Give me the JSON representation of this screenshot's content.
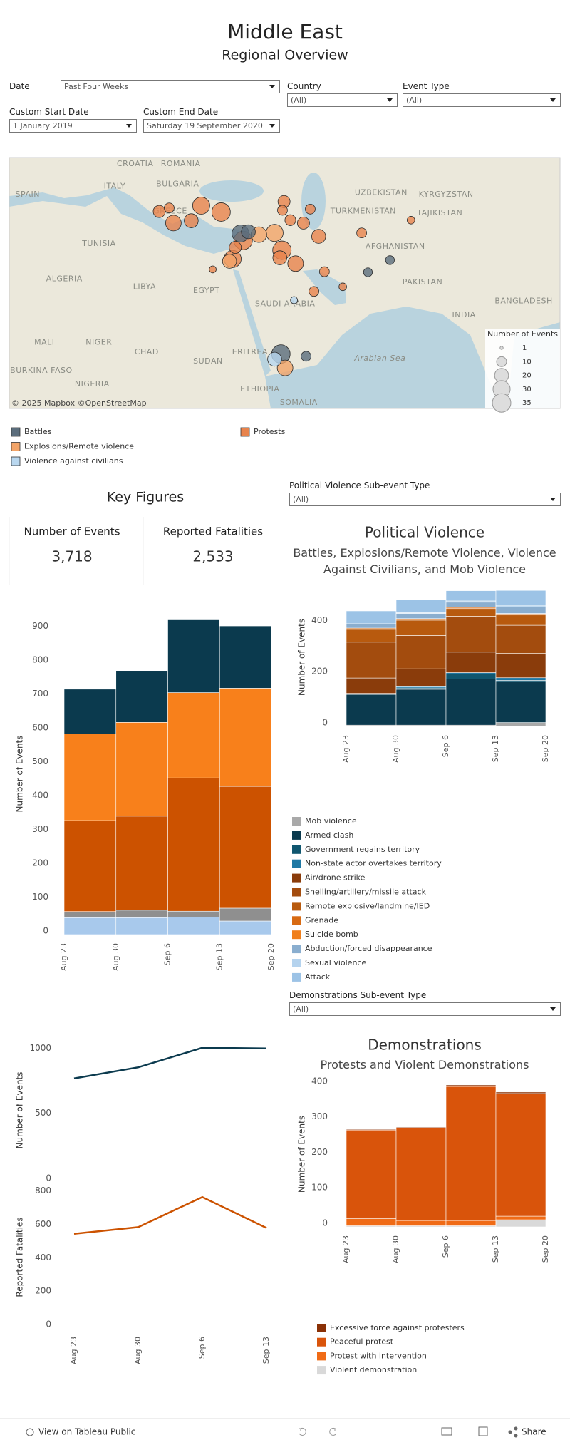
{
  "header": {
    "title": "Middle East",
    "subtitle": "Regional Overview"
  },
  "filters": [
    {
      "label": "Date",
      "value": "Past Four Weeks"
    },
    {
      "label": "Country",
      "value": "(All)"
    },
    {
      "label": "Event Type",
      "value": "(All)"
    },
    {
      "label": "Custom Start Date",
      "value": "1 January 2019"
    },
    {
      "label": "Custom End Date",
      "value": "Saturday 19 September 2020"
    },
    {
      "label": "Political Violence Sub-event Type",
      "value": "(All)"
    },
    {
      "label": "Demonstrations Sub-event Type",
      "value": "(All)"
    }
  ],
  "map": {
    "attribution": "© 2025 Mapbox ©OpenStreetMap",
    "labels": [
      {
        "name": "CROATIA",
        "lon": 16.4,
        "lat": 48.2
      },
      {
        "name": "ROMANIA",
        "lon": 25.1,
        "lat": 48.2
      },
      {
        "name": "ITALY",
        "lon": 12.5,
        "lat": 44.3
      },
      {
        "name": "BULGARIA",
        "lon": 24.5,
        "lat": 44.7
      },
      {
        "name": "SPAIN",
        "lon": -4.1,
        "lat": 42.9
      },
      {
        "name": "GREECE",
        "lon": 23.1,
        "lat": 40
      },
      {
        "name": "UZBEKISTAN",
        "lon": 63.3,
        "lat": 43.2
      },
      {
        "name": "KYRGYZSTAN",
        "lon": 75.7,
        "lat": 42.9
      },
      {
        "name": "TURKMENISTAN",
        "lon": 59.9,
        "lat": 40
      },
      {
        "name": "TAJIKISTAN",
        "lon": 74.5,
        "lat": 39.7
      },
      {
        "name": "TUNISIA",
        "lon": 9.5,
        "lat": 34.4
      },
      {
        "name": "AFGHANISTAN",
        "lon": 66,
        "lat": 33.9
      },
      {
        "name": "ALGERIA",
        "lon": 2.9,
        "lat": 28.3
      },
      {
        "name": "LIBYA",
        "lon": 18.2,
        "lat": 27
      },
      {
        "name": "EGYPT",
        "lon": 30,
        "lat": 26.3
      },
      {
        "name": "SAUDI ARABIA",
        "lon": 45,
        "lat": 24
      },
      {
        "name": "PAKISTAN",
        "lon": 71.2,
        "lat": 27.8
      },
      {
        "name": "INDIA",
        "lon": 79.1,
        "lat": 22.1
      },
      {
        "name": "BANGLADESH",
        "lon": 90.5,
        "lat": 24.5
      },
      {
        "name": "MALI",
        "lon": -0.9,
        "lat": 17.4
      },
      {
        "name": "NIGER",
        "lon": 9.5,
        "lat": 17.4
      },
      {
        "name": "CHAD",
        "lon": 18.6,
        "lat": 15.7
      },
      {
        "name": "SUDAN",
        "lon": 30.3,
        "lat": 14.1
      },
      {
        "name": "ERITREA",
        "lon": 38.3,
        "lat": 15.7
      },
      {
        "name": "ETHIOPIA",
        "lon": 40.2,
        "lat": 9.3
      },
      {
        "name": "BURKINA FASO",
        "lon": -1.5,
        "lat": 12.5
      },
      {
        "name": "NIGERIA",
        "lon": 8.2,
        "lat": 10.2
      },
      {
        "name": "SOMALIA",
        "lon": 47.6,
        "lat": 7
      },
      {
        "name": "Arabian Sea",
        "lon": 63.1,
        "lat": 14.6
      }
    ],
    "points": [
      {
        "lon": 36.5,
        "lat": 36.2,
        "events": 30,
        "type": "Battles"
      },
      {
        "lon": 37,
        "lat": 35,
        "events": 35,
        "type": "Protests"
      },
      {
        "lon": 38,
        "lat": 36.5,
        "events": 20,
        "type": "Battles"
      },
      {
        "lon": 40,
        "lat": 36,
        "events": 25,
        "type": "Explosions/Remote violence"
      },
      {
        "lon": 43,
        "lat": 36.3,
        "events": 30,
        "type": "Explosions/Remote violence"
      },
      {
        "lon": 44.4,
        "lat": 33.3,
        "events": 35,
        "type": "Protests"
      },
      {
        "lon": 44,
        "lat": 32,
        "events": 20,
        "type": "Protests"
      },
      {
        "lon": 47,
        "lat": 31,
        "events": 25,
        "type": "Protests"
      },
      {
        "lon": 35.5,
        "lat": 33.8,
        "events": 15,
        "type": "Protests"
      },
      {
        "lon": 35,
        "lat": 31.8,
        "events": 30,
        "type": "Protests"
      },
      {
        "lon": 34.4,
        "lat": 31.4,
        "events": 20,
        "type": "Explosions/Remote violence"
      },
      {
        "lon": 32.8,
        "lat": 39.9,
        "events": 35,
        "type": "Protests"
      },
      {
        "lon": 29,
        "lat": 41,
        "events": 30,
        "type": "Protests"
      },
      {
        "lon": 27.1,
        "lat": 38.4,
        "events": 20,
        "type": "Protests"
      },
      {
        "lon": 23.7,
        "lat": 38,
        "events": 25,
        "type": "Protests"
      },
      {
        "lon": 22.9,
        "lat": 40.6,
        "events": 10,
        "type": "Protests"
      },
      {
        "lon": 21,
        "lat": 40,
        "events": 15,
        "type": "Protests"
      },
      {
        "lon": 44.2,
        "lat": 15.4,
        "events": 35,
        "type": "Battles"
      },
      {
        "lon": 45,
        "lat": 13,
        "events": 25,
        "type": "Explosions/Remote violence"
      },
      {
        "lon": 43,
        "lat": 14.5,
        "events": 20,
        "type": "Violence against civilians"
      },
      {
        "lon": 49,
        "lat": 15,
        "events": 10,
        "type": "Battles"
      },
      {
        "lon": 51.4,
        "lat": 35.7,
        "events": 20,
        "type": "Protests"
      },
      {
        "lon": 48.5,
        "lat": 38,
        "events": 15,
        "type": "Protests"
      },
      {
        "lon": 59.6,
        "lat": 36.3,
        "events": 10,
        "type": "Protests"
      },
      {
        "lon": 60.8,
        "lat": 29.5,
        "events": 8,
        "type": "Battles"
      },
      {
        "lon": 52.5,
        "lat": 29.6,
        "events": 10,
        "type": "Protests"
      },
      {
        "lon": 56,
        "lat": 27,
        "events": 6,
        "type": "Protests"
      },
      {
        "lon": 46,
        "lat": 38.5,
        "events": 12,
        "type": "Protests"
      },
      {
        "lon": 31.2,
        "lat": 30,
        "events": 5,
        "type": "Protests"
      },
      {
        "lon": 50.5,
        "lat": 26.2,
        "events": 10,
        "type": "Protests"
      },
      {
        "lon": 46.7,
        "lat": 24.7,
        "events": 5,
        "type": "Violence against civilians"
      },
      {
        "lon": 49.8,
        "lat": 40.4,
        "events": 10,
        "type": "Protests"
      },
      {
        "lon": 44.8,
        "lat": 41.7,
        "events": 15,
        "type": "Protests"
      },
      {
        "lon": 44.5,
        "lat": 40.2,
        "events": 10,
        "type": "Protests"
      },
      {
        "lon": 69,
        "lat": 38.5,
        "events": 6,
        "type": "Protests"
      },
      {
        "lon": 65,
        "lat": 31.6,
        "events": 8,
        "type": "Battles"
      }
    ],
    "legend": [
      {
        "name": "Battles",
        "color": "#5b6d7c"
      },
      {
        "name": "Explosions/Remote violence",
        "color": "#f3a468"
      },
      {
        "name": "Violence against civilians",
        "color": "#b9d7ef"
      },
      {
        "name": "Protests",
        "color": "#e8834c"
      }
    ],
    "size_legend": {
      "title": "Number of Events",
      "values": [
        1,
        10,
        20,
        30,
        35
      ]
    }
  },
  "key_figures": {
    "title": "Key Figures",
    "items": [
      {
        "label": "Number of Events",
        "value": "3,718"
      },
      {
        "label": "Reported Fatalities",
        "value": "2,533"
      }
    ]
  },
  "chart_data": [
    {
      "type": "bar",
      "stacked": true,
      "ylabel": "Number of Events",
      "x": [
        "Aug 23",
        "Aug 30",
        "Sep 6",
        "Sep 13"
      ],
      "xticks": [
        "Aug 23",
        "Aug 30",
        "Sep 6",
        "Sep 13",
        "Sep 20"
      ],
      "ylim": [
        0,
        950
      ],
      "yticks": [
        0,
        100,
        200,
        300,
        400,
        500,
        600,
        700,
        800,
        900
      ],
      "series": [
        {
          "color": "#a8c9ec",
          "values": [
            50,
            50,
            52,
            40
          ]
        },
        {
          "color": "#8f8f8f",
          "values": [
            18,
            22,
            17,
            38
          ]
        },
        {
          "color": "#cc5200",
          "values": [
            269,
            278,
            394,
            360
          ]
        },
        {
          "color": "#f8801b",
          "values": [
            256,
            277,
            252,
            290
          ]
        },
        {
          "color": "#0b3a4e",
          "values": [
            132,
            153,
            215,
            184
          ]
        }
      ]
    },
    {
      "type": "bar",
      "stacked": true,
      "title": "Political Violence",
      "subtitle": "Battles, Explosions/Remote Violence, Violence Against Civilians, and Mob Violence",
      "ylabel": "Number of Events",
      "x": [
        "Aug 23",
        "Aug 30",
        "Sep 6",
        "Sep 13"
      ],
      "xticks": [
        "Aug 23",
        "Aug 30",
        "Sep 6",
        "Sep 13",
        "Sep 20"
      ],
      "ylim": [
        0,
        540
      ],
      "yticks": [
        0,
        200,
        400
      ],
      "series": [
        {
          "name": "Mob violence",
          "color": "#a9a9a9",
          "values": [
            5,
            5,
            5,
            15
          ]
        },
        {
          "name": "Armed clash",
          "color": "#0b3a4e",
          "values": [
            120,
            140,
            180,
            160
          ]
        },
        {
          "name": "Government regains territory",
          "color": "#10566f",
          "values": [
            2,
            5,
            20,
            5
          ]
        },
        {
          "name": "Non-state actor overtakes territory",
          "color": "#1f78a4",
          "values": [
            2,
            5,
            5,
            10
          ]
        },
        {
          "name": "Air/drone strike",
          "color": "#8a3c0b",
          "values": [
            60,
            70,
            80,
            95
          ]
        },
        {
          "name": "Shelling/artillery/missile attack",
          "color": "#a34c0e",
          "values": [
            140,
            130,
            140,
            110
          ]
        },
        {
          "name": "Remote explosive/landmine/IED",
          "color": "#b85a0e",
          "values": [
            50,
            60,
            30,
            40
          ]
        },
        {
          "name": "Grenade",
          "color": "#d86a12",
          "values": [
            5,
            5,
            5,
            5
          ]
        },
        {
          "name": "Suicide bomb",
          "color": "#f07f1b",
          "values": [
            0,
            1,
            0,
            1
          ]
        },
        {
          "name": "Abduction/forced disappearance",
          "color": "#8aaecf",
          "values": [
            15,
            20,
            20,
            25
          ]
        },
        {
          "name": "Sexual violence",
          "color": "#b5d3ee",
          "values": [
            2,
            3,
            5,
            5
          ]
        },
        {
          "name": "Attack",
          "color": "#9cc3e6",
          "values": [
            50,
            50,
            40,
            60
          ]
        }
      ]
    },
    {
      "type": "line",
      "ylabel": "Number of Events",
      "categories": [
        "Aug 23",
        "Aug 30",
        "Sep 6",
        "Sep 13"
      ],
      "ylim": [
        0,
        1100
      ],
      "yticks": [
        0,
        500,
        1000
      ],
      "color": "#0b3a4e",
      "values": [
        795,
        880,
        1030,
        1025
      ]
    },
    {
      "type": "line",
      "ylabel": "Reported Fatalities",
      "categories": [
        "Aug 23",
        "Aug 30",
        "Sep 6",
        "Sep 13"
      ],
      "ylim": [
        0,
        850
      ],
      "yticks": [
        0,
        200,
        400,
        600,
        800
      ],
      "color": "#cc5200",
      "values": [
        565,
        605,
        785,
        600
      ]
    },
    {
      "type": "bar",
      "stacked": true,
      "title": "Demonstrations",
      "subtitle": "Protests and Violent Demonstrations",
      "ylabel": "Number of Events",
      "x": [
        "Aug 23",
        "Aug 30",
        "Sep 6",
        "Sep 13"
      ],
      "xticks": [
        "Aug 23",
        "Aug 30",
        "Sep 6",
        "Sep 13",
        "Sep 20"
      ],
      "ylim": [
        0,
        410
      ],
      "yticks": [
        0,
        100,
        200,
        300,
        400
      ],
      "series": [
        {
          "name": "Excessive force against protesters",
          "color": "#8a3106",
          "values": [
            2,
            2,
            4,
            4
          ]
        },
        {
          "name": "Peaceful protest",
          "color": "#d9540b",
          "values": [
            250,
            262,
            378,
            346
          ]
        },
        {
          "name": "Protest with intervention",
          "color": "#f06b16",
          "values": [
            20,
            15,
            15,
            10
          ]
        },
        {
          "name": "Violent demonstration",
          "color": "#d9d9d9",
          "values": [
            3,
            3,
            3,
            20
          ]
        }
      ]
    }
  ],
  "footer": {
    "link": "View on Tableau Public",
    "share": "Share"
  }
}
